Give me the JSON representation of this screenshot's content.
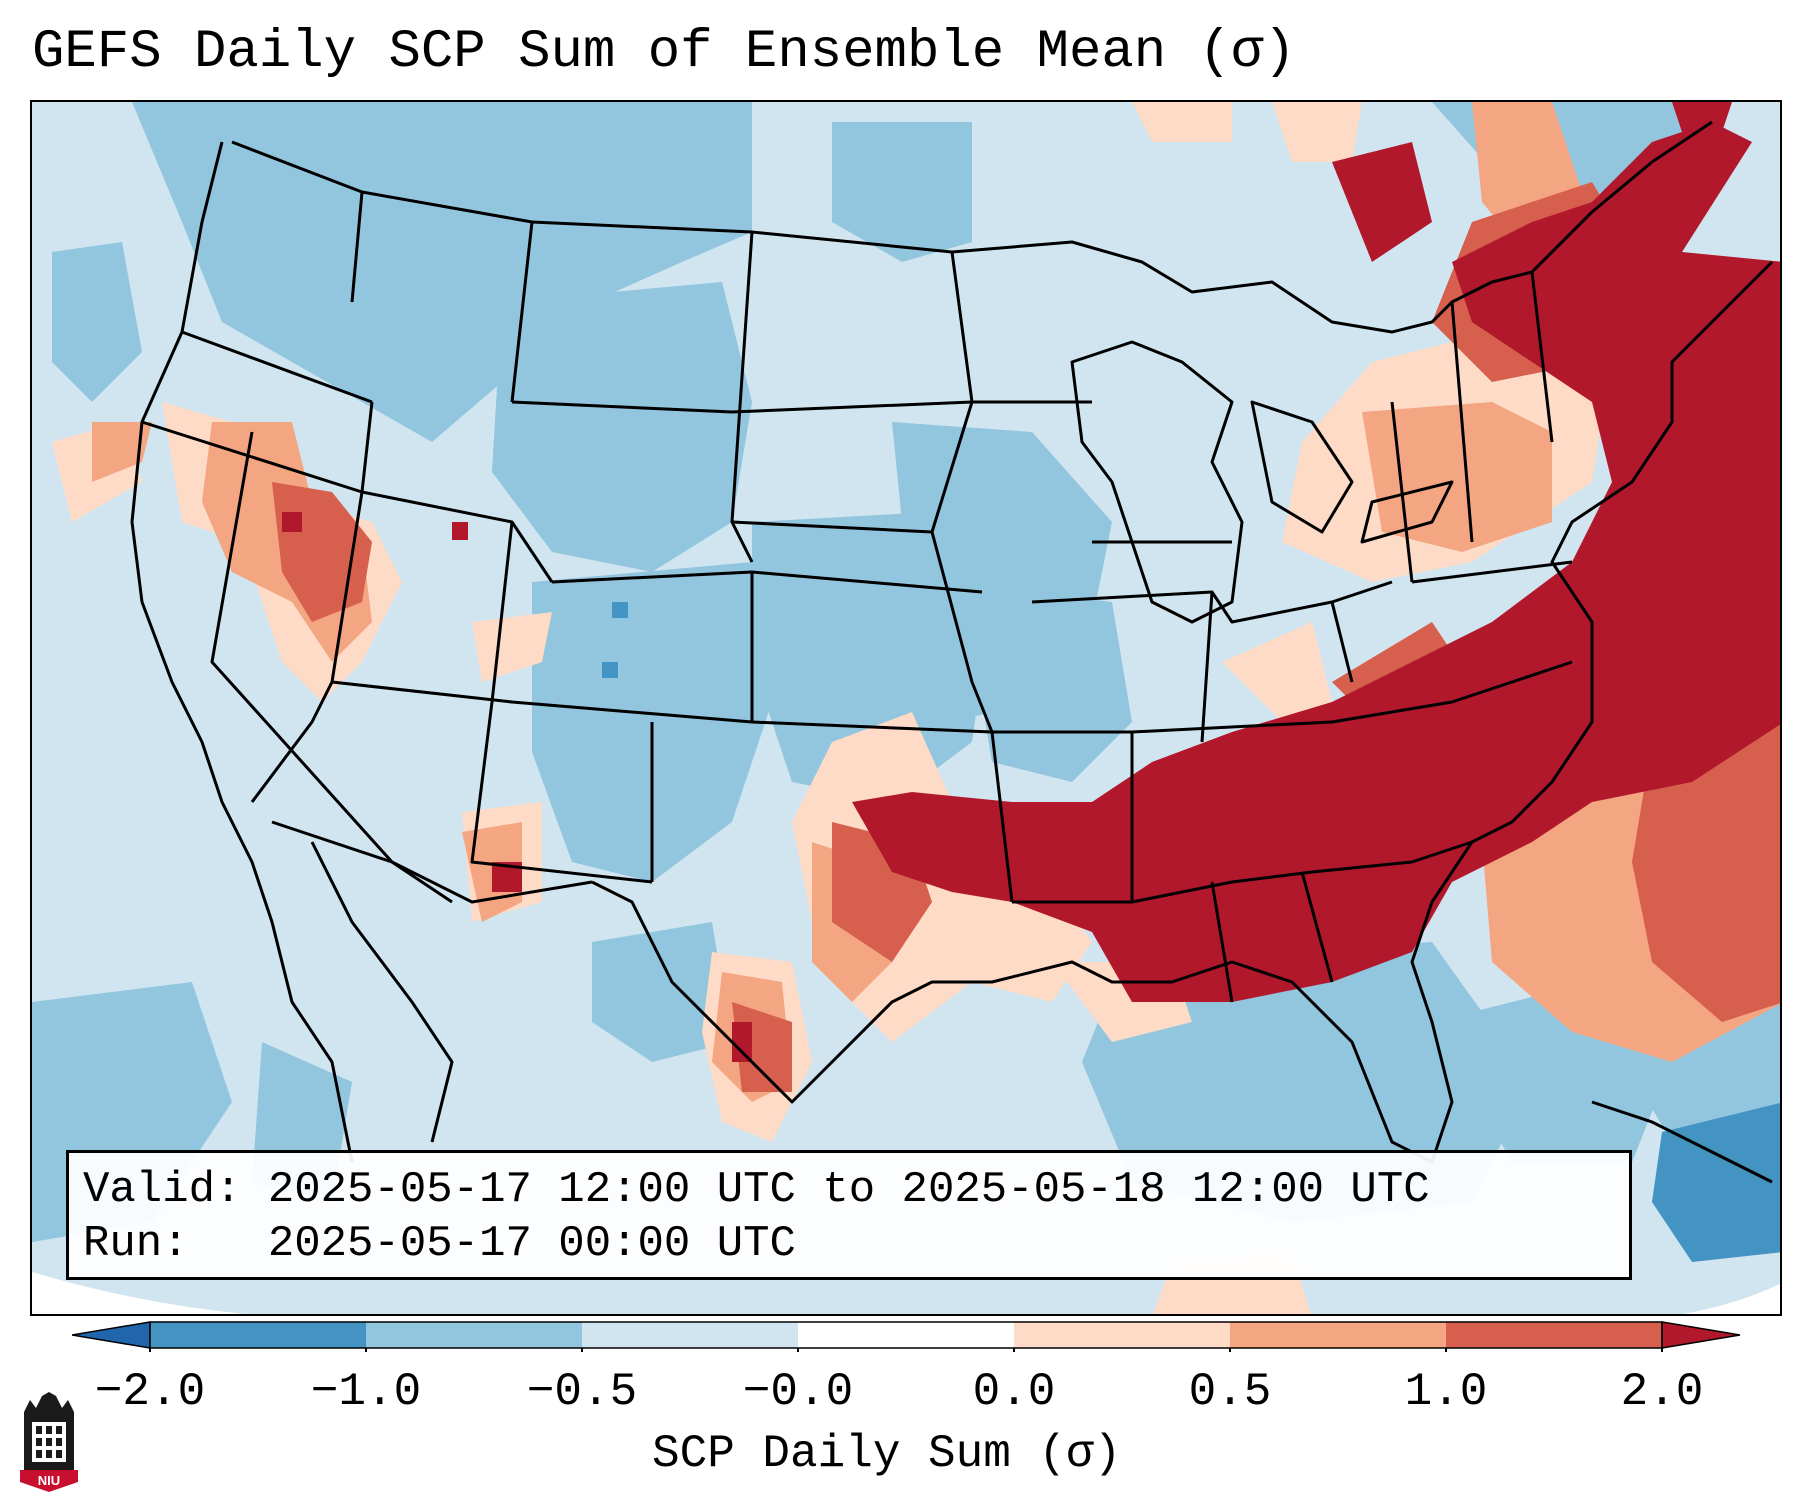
{
  "title": "GEFS Daily SCP Sum of Ensemble Mean (σ)",
  "info": {
    "valid_label": "Valid:",
    "valid_value": "2025-05-17 12:00 UTC to 2025-05-18 12:00 UTC",
    "run_label": "Run:",
    "run_value": "2025-05-17 00:00 UTC"
  },
  "colorbar": {
    "label": "SCP Daily Sum (σ)",
    "ticks": [
      "−2.0",
      "−1.0",
      "−0.5",
      "−0.0",
      "0.0",
      "0.5",
      "1.0",
      "2.0"
    ],
    "colors": {
      "extend_low": "#2166ac",
      "bin_m2_m1": "#4393c3",
      "bin_m1_m05": "#92c5de",
      "bin_m05_0": "#d1e5f0",
      "bin_0_05": "#fddbc7",
      "bin_05_1": "#f4a582",
      "bin_1_2": "#d6604d",
      "extend_high": "#b2182b"
    }
  },
  "logo": {
    "text": "NIU",
    "color": "#c8102e"
  }
}
